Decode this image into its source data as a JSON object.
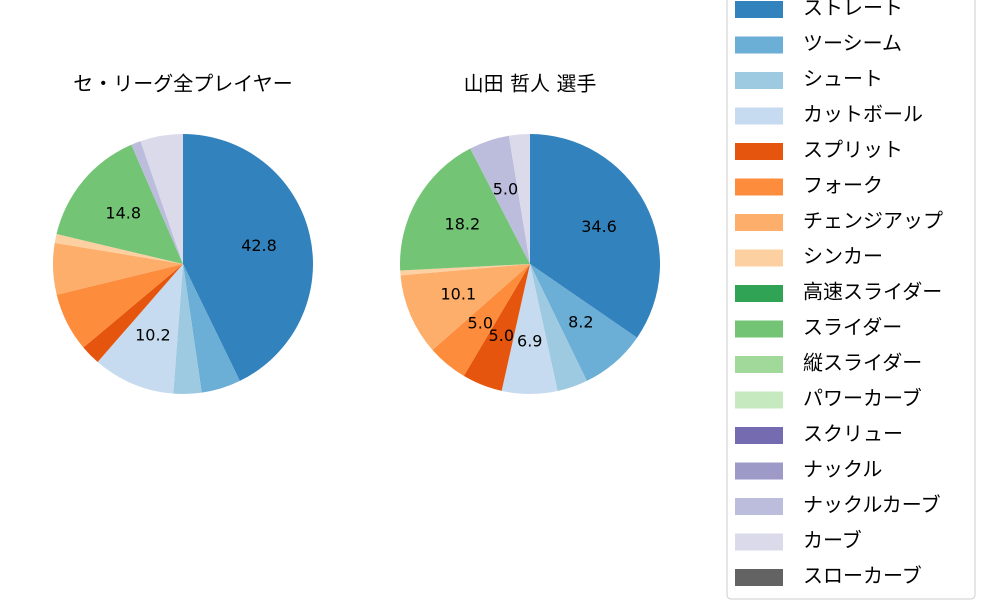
{
  "chart_data": [
    {
      "type": "pie",
      "title": "セ・リーグ全プレイヤー",
      "categories": [
        "ストレート",
        "ツーシーム",
        "シュート",
        "カットボール",
        "スプリット",
        "フォーク",
        "チェンジアップ",
        "シンカー",
        "高速スライダー",
        "スライダー",
        "縦スライダー",
        "パワーカーブ",
        "スクリュー",
        "ナックル",
        "ナックルカーブ",
        "カーブ",
        "スローカーブ"
      ],
      "colors": [
        "#3182bd",
        "#6baed6",
        "#9ecae1",
        "#c6dbef",
        "#e6550d",
        "#fd8d3c",
        "#fdae6b",
        "#fdd0a2",
        "#31a354",
        "#74c476",
        "#a1d99b",
        "#c7e9c0",
        "#756bb1",
        "#9e9ac8",
        "#bcbddc",
        "#dadaeb",
        "#636363"
      ],
      "values": [
        42.8,
        4.9,
        3.5,
        10.2,
        2.5,
        7.3,
        6.4,
        1.1,
        0,
        14.8,
        0,
        0,
        0,
        0,
        1.2,
        5.3,
        0
      ],
      "value_labels": [
        "42.8",
        null,
        null,
        "10.2",
        null,
        null,
        null,
        null,
        null,
        "14.8",
        null,
        null,
        null,
        null,
        null,
        null,
        null
      ]
    },
    {
      "type": "pie",
      "title": "山田 哲人  選手",
      "categories": [
        "ストレート",
        "ツーシーム",
        "シュート",
        "カットボール",
        "スプリット",
        "フォーク",
        "チェンジアップ",
        "シンカー",
        "高速スライダー",
        "スライダー",
        "縦スライダー",
        "パワーカーブ",
        "スクリュー",
        "ナックル",
        "ナックルカーブ",
        "カーブ",
        "スローカーブ"
      ],
      "colors": [
        "#3182bd",
        "#6baed6",
        "#9ecae1",
        "#c6dbef",
        "#e6550d",
        "#fd8d3c",
        "#fdae6b",
        "#fdd0a2",
        "#31a354",
        "#74c476",
        "#a1d99b",
        "#c7e9c0",
        "#756bb1",
        "#9e9ac8",
        "#bcbddc",
        "#dadaeb",
        "#636363"
      ],
      "values": [
        34.6,
        8.2,
        3.8,
        6.9,
        5.0,
        5.0,
        10.1,
        0.6,
        0,
        18.2,
        0,
        0,
        0,
        0,
        5.0,
        2.6,
        0
      ],
      "value_labels": [
        "34.6",
        "8.2",
        null,
        "6.9",
        "5.0",
        "5.0",
        "10.1",
        null,
        null,
        "18.2",
        null,
        null,
        null,
        null,
        "5.0",
        null,
        null
      ]
    }
  ]
}
